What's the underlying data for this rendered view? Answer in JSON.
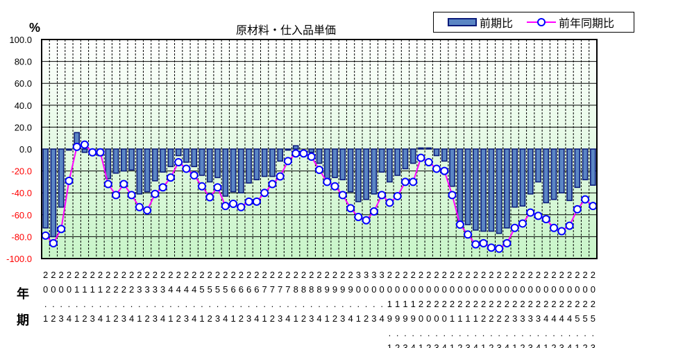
{
  "chart": {
    "title": "原材料・仕入品単価",
    "unit_label": "%",
    "x_side_labels": {
      "year": "年",
      "period": "期"
    },
    "legend": [
      {
        "label": "前期比",
        "type": "bar",
        "color": "#5b86c4",
        "edge": "#0a1a7a"
      },
      {
        "label": "前年同期比",
        "type": "line",
        "color": "#ff00ff",
        "marker": "#0000ff"
      }
    ]
  },
  "colors": {
    "bar_fill": "#5b86c4",
    "bar_edge": "#0a1a7a",
    "line": "#ff00ff",
    "marker_edge": "#0000ff",
    "negative_tick": "#ff0000",
    "positive_tick": "#000000",
    "plot_bg_top": "#ffffff",
    "plot_bg_bottom": "#c8f5c8"
  },
  "chart_data": {
    "type": "bar",
    "title": "原材料・仕入品単価",
    "xlabel": "年 / 期",
    "ylabel": "%",
    "ylim": [
      -100,
      100
    ],
    "yticks": [
      100.0,
      80.0,
      60.0,
      40.0,
      20.0,
      0.0,
      -20.0,
      -40.0,
      -60.0,
      -80.0,
      -100.0
    ],
    "ytick_labels": [
      "100.0",
      "80.0",
      "60.0",
      "40.0",
      "20.0",
      "0.0",
      "-20.0",
      "-40.0",
      "-60.0",
      "-80.0",
      "-100.0"
    ],
    "grid": true,
    "legend_position": "top-right",
    "categories": [
      "20.1",
      "20.2",
      "20.3",
      "20.4",
      "21.1",
      "21.2",
      "21.3",
      "21.4",
      "22.1",
      "22.2",
      "22.3",
      "22.4",
      "23.1",
      "23.2",
      "23.3",
      "23.4",
      "24.1",
      "24.2",
      "24.3",
      "24.4",
      "25.1",
      "25.2",
      "25.3",
      "25.4",
      "26.1",
      "26.2",
      "26.3",
      "26.4",
      "27.1",
      "27.2",
      "27.3",
      "27.4",
      "28.1",
      "28.2",
      "28.3",
      "28.4",
      "29.1",
      "29.2",
      "29.3",
      "29.4",
      "30.1",
      "30.2",
      "30.3",
      "30.4",
      "2019.1",
      "2019.2",
      "2019.3",
      "2019.4",
      "2020.1",
      "2020.2",
      "2020.3",
      "2020.4",
      "2021.1",
      "2021.2",
      "2021.3",
      "2021.4",
      "2022.1",
      "2022.2",
      "2022.3",
      "2022.4",
      "2023.1",
      "2023.2",
      "2023.3",
      "2023.4",
      "2024.1",
      "2024.2",
      "2024.3",
      "2024.4",
      "2025.1",
      "2025.2",
      "2025.3"
    ],
    "series": [
      {
        "name": "前期比",
        "type": "bar",
        "values": [
          -72,
          -80,
          -53,
          -1,
          15,
          -3,
          0,
          -6,
          -27,
          -22,
          -20,
          -19,
          -41,
          -39,
          -29,
          -21,
          -16,
          -6,
          -12,
          -16,
          -24,
          -30,
          -26,
          -43,
          -39,
          -40,
          -31,
          -28,
          -25,
          -25,
          -11,
          -1,
          3,
          0,
          -3,
          -13,
          -27,
          -26,
          -28,
          -39,
          -48,
          -46,
          -41,
          -21,
          -30,
          -24,
          -18,
          -13,
          1,
          1,
          -6,
          -11,
          -34,
          -66,
          -69,
          -74,
          -75,
          -75,
          -77,
          -72,
          -53,
          -52,
          -41,
          -30,
          -49,
          -46,
          -40,
          -47,
          -35,
          -28,
          -33
        ]
      },
      {
        "name": "前年同期比",
        "type": "line",
        "values": [
          -79,
          -86,
          -73,
          -29,
          2,
          4,
          -3,
          -3,
          -32,
          -42,
          -32,
          -42,
          -53,
          -56,
          -41,
          -35,
          -26,
          -12,
          -18,
          -24,
          -34,
          -44,
          -35,
          -52,
          -50,
          -53,
          -48,
          -48,
          -40,
          -32,
          -25,
          -11,
          -4,
          -4,
          -7,
          -19,
          -30,
          -34,
          -42,
          -54,
          -62,
          -65,
          -57,
          -42,
          -49,
          -43,
          -30,
          -30,
          -8,
          -12,
          -18,
          -20,
          -42,
          -69,
          -78,
          -87,
          -86,
          -90,
          -91,
          -86,
          -72,
          -68,
          -58,
          -61,
          -64,
          -72,
          -75,
          -70,
          -55,
          -46,
          -52
        ]
      }
    ]
  }
}
